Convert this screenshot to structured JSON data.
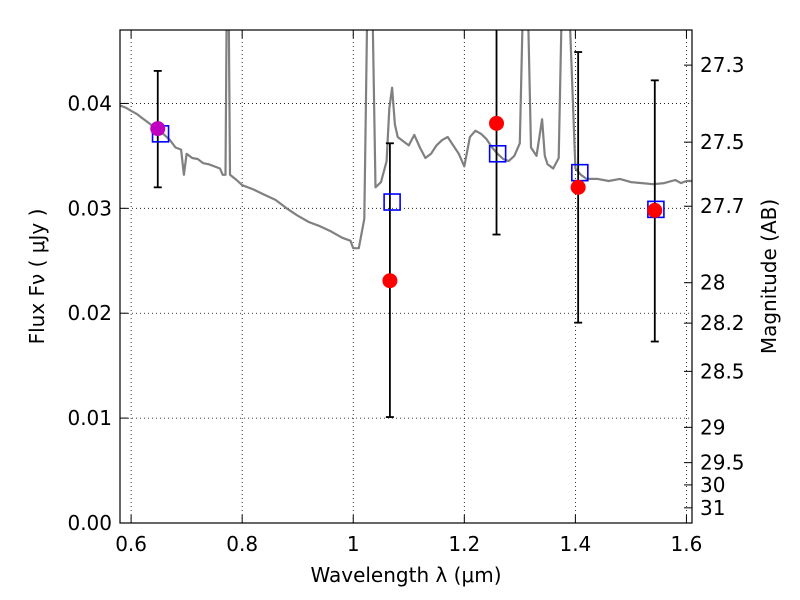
{
  "chart_data": {
    "type": "scatter",
    "xlabel": "Wavelength  λ (μm)",
    "ylabel": "Flux  Fν  ( μJy )",
    "y2label": "Magnitude (AB)",
    "xlim": [
      0.58,
      1.61
    ],
    "ylim": [
      0.0,
      0.047
    ],
    "grid": true,
    "grid_style": "dotted",
    "x_ticks": [
      0.6,
      0.8,
      1.0,
      1.2,
      1.4,
      1.6
    ],
    "x_tick_labels": [
      "0.6",
      "0.8",
      "1",
      "1.2",
      "1.4",
      "1.6"
    ],
    "y_ticks": [
      0.0,
      0.01,
      0.02,
      0.03,
      0.04
    ],
    "y_tick_labels": [
      "0.00",
      "0.01",
      "0.02",
      "0.03",
      "0.04"
    ],
    "y2_ticks": [
      {
        "label": "27.3",
        "mag": 27.3
      },
      {
        "label": "27.5",
        "mag": 27.5
      },
      {
        "label": "27.7",
        "mag": 27.7
      },
      {
        "label": "28",
        "mag": 28.0
      },
      {
        "label": "28.2",
        "mag": 28.2
      },
      {
        "label": "28.5",
        "mag": 28.5
      },
      {
        "label": "29",
        "mag": 29.0
      },
      {
        "label": "29.5",
        "mag": 29.5
      },
      {
        "label": "30",
        "mag": 30.0
      },
      {
        "label": "31",
        "mag": 31.0
      }
    ],
    "colors": {
      "spectrum": "#808080",
      "observed": "#ff0000",
      "first_observed": "#bf00bf",
      "model": "#0000ff",
      "errorbar": "#000000",
      "grid": "#000000"
    },
    "spectrum": [
      [
        0.58,
        0.0398
      ],
      [
        0.59,
        0.0396
      ],
      [
        0.6,
        0.0393
      ],
      [
        0.61,
        0.039
      ],
      [
        0.62,
        0.0386
      ],
      [
        0.63,
        0.0382
      ],
      [
        0.64,
        0.0378
      ],
      [
        0.65,
        0.0375
      ],
      [
        0.66,
        0.037
      ],
      [
        0.67,
        0.0365
      ],
      [
        0.68,
        0.0358
      ],
      [
        0.69,
        0.0356
      ],
      [
        0.695,
        0.0332
      ],
      [
        0.7,
        0.0352
      ],
      [
        0.71,
        0.0348
      ],
      [
        0.72,
        0.0347
      ],
      [
        0.73,
        0.0343
      ],
      [
        0.74,
        0.0342
      ],
      [
        0.75,
        0.034
      ],
      [
        0.76,
        0.0338
      ],
      [
        0.765,
        0.0332
      ],
      [
        0.77,
        0.0332
      ],
      [
        0.772,
        0.048
      ],
      [
        0.776,
        0.048
      ],
      [
        0.778,
        0.0332
      ],
      [
        0.79,
        0.0327
      ],
      [
        0.8,
        0.0322
      ],
      [
        0.82,
        0.0318
      ],
      [
        0.84,
        0.0313
      ],
      [
        0.86,
        0.0308
      ],
      [
        0.88,
        0.03
      ],
      [
        0.9,
        0.0293
      ],
      [
        0.92,
        0.0287
      ],
      [
        0.94,
        0.0283
      ],
      [
        0.96,
        0.0278
      ],
      [
        0.98,
        0.0272
      ],
      [
        0.995,
        0.0269
      ],
      [
        1.0,
        0.0262
      ],
      [
        1.01,
        0.0262
      ],
      [
        1.02,
        0.029
      ],
      [
        1.025,
        0.048
      ],
      [
        1.035,
        0.048
      ],
      [
        1.04,
        0.032
      ],
      [
        1.05,
        0.0325
      ],
      [
        1.06,
        0.0345
      ],
      [
        1.065,
        0.0395
      ],
      [
        1.07,
        0.0415
      ],
      [
        1.075,
        0.038
      ],
      [
        1.08,
        0.0368
      ],
      [
        1.09,
        0.0364
      ],
      [
        1.1,
        0.036
      ],
      [
        1.11,
        0.037
      ],
      [
        1.12,
        0.0358
      ],
      [
        1.13,
        0.0348
      ],
      [
        1.14,
        0.0352
      ],
      [
        1.15,
        0.036
      ],
      [
        1.16,
        0.0365
      ],
      [
        1.17,
        0.0368
      ],
      [
        1.18,
        0.036
      ],
      [
        1.19,
        0.0352
      ],
      [
        1.2,
        0.034
      ],
      [
        1.21,
        0.0368
      ],
      [
        1.22,
        0.0374
      ],
      [
        1.23,
        0.0371
      ],
      [
        1.24,
        0.0366
      ],
      [
        1.25,
        0.0358
      ],
      [
        1.26,
        0.0352
      ],
      [
        1.27,
        0.0347
      ],
      [
        1.28,
        0.0345
      ],
      [
        1.29,
        0.035
      ],
      [
        1.3,
        0.0362
      ],
      [
        1.305,
        0.048
      ],
      [
        1.315,
        0.048
      ],
      [
        1.32,
        0.0358
      ],
      [
        1.33,
        0.035
      ],
      [
        1.34,
        0.0385
      ],
      [
        1.345,
        0.035
      ],
      [
        1.35,
        0.0342
      ],
      [
        1.36,
        0.0338
      ],
      [
        1.37,
        0.0348
      ],
      [
        1.375,
        0.048
      ],
      [
        1.39,
        0.048
      ],
      [
        1.4,
        0.0338
      ],
      [
        1.41,
        0.0332
      ],
      [
        1.42,
        0.0328
      ],
      [
        1.44,
        0.0328
      ],
      [
        1.46,
        0.0326
      ],
      [
        1.48,
        0.0328
      ],
      [
        1.5,
        0.0325
      ],
      [
        1.52,
        0.0324
      ],
      [
        1.54,
        0.0323
      ],
      [
        1.56,
        0.0324
      ],
      [
        1.58,
        0.0327
      ],
      [
        1.59,
        0.0324
      ],
      [
        1.6,
        0.0326
      ],
      [
        1.61,
        0.0326
      ]
    ],
    "observed": [
      {
        "x": 0.648,
        "y": 0.0376,
        "yerr_low": 0.032,
        "yerr_high": 0.0431
      },
      {
        "x": 1.066,
        "y": 0.0231,
        "yerr_low": 0.0101,
        "yerr_high": 0.0362
      },
      {
        "x": 1.258,
        "y": 0.0381,
        "yerr_low": 0.0275,
        "yerr_high": 0.049
      },
      {
        "x": 1.405,
        "y": 0.032,
        "yerr_low": 0.0191,
        "yerr_high": 0.0449
      },
      {
        "x": 1.543,
        "y": 0.0298,
        "yerr_low": 0.0173,
        "yerr_high": 0.0422
      }
    ],
    "model": [
      {
        "x": 0.653,
        "y": 0.0371
      },
      {
        "x": 1.07,
        "y": 0.0306
      },
      {
        "x": 1.26,
        "y": 0.0352
      },
      {
        "x": 1.408,
        "y": 0.0334
      },
      {
        "x": 1.545,
        "y": 0.0299
      }
    ]
  }
}
